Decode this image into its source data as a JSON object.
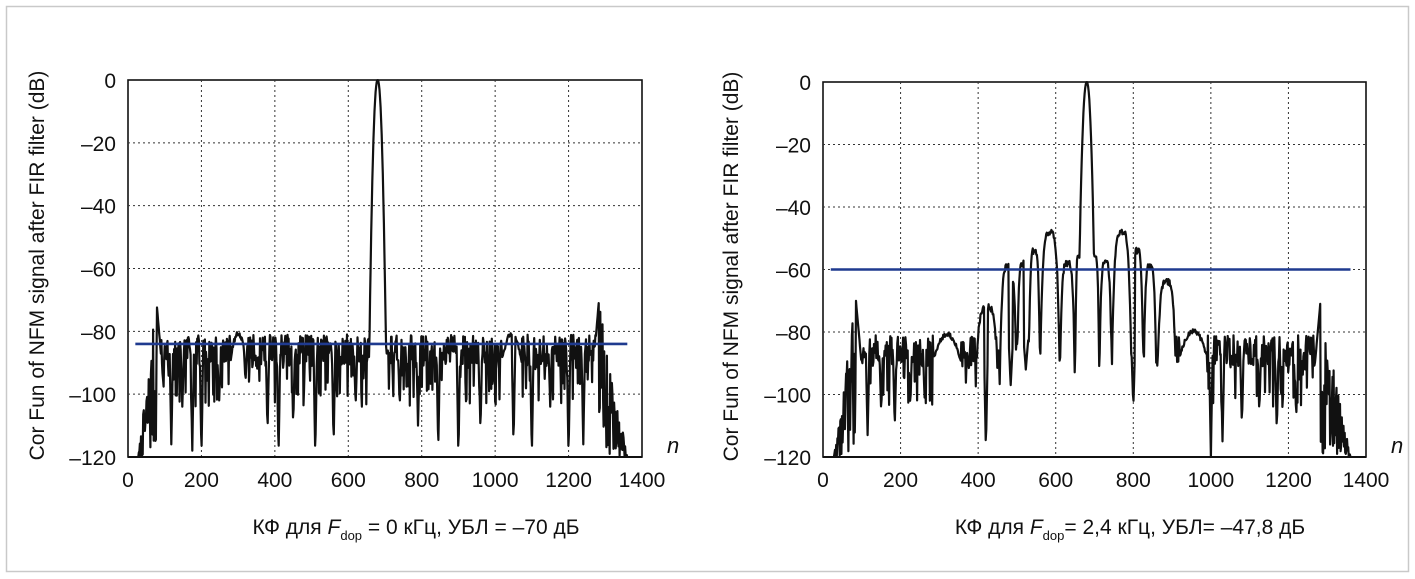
{
  "chart_data": [
    {
      "type": "line",
      "ylabel": "Cor Fun of NFM signal after FIR filter (dB)",
      "xlabel_symbol": "n",
      "caption": {
        "prefix": "КФ для ",
        "var": "F",
        "sub": "dop",
        "suffix": " = 0 кГц, УБЛ = –70 дБ"
      },
      "xlim": [
        0,
        1400
      ],
      "ylim": [
        -120,
        0
      ],
      "x_ticks": [
        "0",
        "200",
        "400",
        "600",
        "800",
        "1000",
        "1200",
        "1400"
      ],
      "y_ticks": [
        "0",
        "–20",
        "–40",
        "–60",
        "–80",
        "–100",
        "–120"
      ],
      "grid": true,
      "reference_line": {
        "y": -84,
        "color": "#1f3a8f"
      },
      "series_color": "#111111",
      "signal": {
        "x_range": [
          28,
          1360
        ],
        "mainlobe": {
          "x": 680,
          "y": 0,
          "width_3db": 22
        },
        "sidelobe_floor": -80,
        "edge_peaks": [
          {
            "x": 78,
            "y": -69
          },
          {
            "x": 1282,
            "y": -69
          }
        ],
        "deep_nulls": [
          {
            "x": 118,
            "y": -116
          },
          {
            "x": 148,
            "y": -104
          },
          {
            "x": 175,
            "y": -118
          },
          {
            "x": 200,
            "y": -120
          },
          {
            "x": 248,
            "y": -104
          },
          {
            "x": 320,
            "y": -96
          },
          {
            "x": 380,
            "y": -112
          },
          {
            "x": 410,
            "y": -120
          },
          {
            "x": 450,
            "y": -110
          },
          {
            "x": 510,
            "y": -120
          },
          {
            "x": 560,
            "y": -116
          },
          {
            "x": 620,
            "y": -104
          },
          {
            "x": 740,
            "y": -104
          },
          {
            "x": 790,
            "y": -110
          },
          {
            "x": 845,
            "y": -118
          },
          {
            "x": 900,
            "y": -120
          },
          {
            "x": 960,
            "y": -112
          },
          {
            "x": 1050,
            "y": -116
          },
          {
            "x": 1100,
            "y": -120
          },
          {
            "x": 1150,
            "y": -104
          },
          {
            "x": 1200,
            "y": -120
          },
          {
            "x": 1240,
            "y": -116
          }
        ],
        "smooth_arches": [
          [
            280,
            320,
            -80
          ],
          [
            1020,
            1070,
            -80
          ]
        ]
      }
    },
    {
      "type": "line",
      "ylabel": "Cor Fun of NFM signal after FIR filter (dB)",
      "xlabel_symbol": "n",
      "caption": {
        "prefix": "КФ для ",
        "var": "F",
        "sub": "dop",
        "suffix": "= 2,4 кГц, УБЛ= –47,8 дБ"
      },
      "xlim": [
        0,
        1400
      ],
      "ylim": [
        -120,
        0
      ],
      "x_ticks": [
        "0",
        "200",
        "400",
        "600",
        "800",
        "1000",
        "1200",
        "1400"
      ],
      "y_ticks": [
        "0",
        "–20",
        "–40",
        "–60",
        "–80",
        "–100",
        "–120"
      ],
      "grid": true,
      "reference_line": {
        "y": -60,
        "color": "#1f3a8f"
      },
      "series_color": "#111111",
      "signal": {
        "x_range": [
          28,
          1360
        ],
        "mainlobe": {
          "x": 680,
          "y": 0,
          "width_3db": 22
        },
        "sidelobe_floor": -80,
        "edge_peaks": [
          {
            "x": 85,
            "y": -68
          },
          {
            "x": 1282,
            "y": -69
          }
        ],
        "inner_lobes": [
          [
            455,
            500,
            -58
          ],
          [
            500,
            530,
            -57
          ],
          [
            530,
            560,
            -53
          ],
          [
            560,
            610,
            -47
          ],
          [
            610,
            650,
            -57
          ],
          [
            650,
            668,
            -55
          ],
          [
            692,
            712,
            -55
          ],
          [
            712,
            745,
            -57
          ],
          [
            745,
            795,
            -47
          ],
          [
            795,
            826,
            -53
          ],
          [
            826,
            860,
            -58
          ],
          [
            860,
            912,
            -63
          ],
          [
            390,
            455,
            -71
          ]
        ],
        "deep_nulls": [
          {
            "x": 115,
            "y": -113
          },
          {
            "x": 150,
            "y": -106
          },
          {
            "x": 185,
            "y": -111
          },
          {
            "x": 225,
            "y": -104
          },
          {
            "x": 262,
            "y": -101
          },
          {
            "x": 420,
            "y": -118
          },
          {
            "x": 484,
            "y": -97
          },
          {
            "x": 523,
            "y": -92
          },
          {
            "x": 800,
            "y": -104
          },
          {
            "x": 1000,
            "y": -120
          },
          {
            "x": 1030,
            "y": -115
          },
          {
            "x": 1080,
            "y": -110
          },
          {
            "x": 1125,
            "y": -106
          },
          {
            "x": 1170,
            "y": -112
          },
          {
            "x": 1220,
            "y": -108
          }
        ],
        "smooth_arches": [
          [
            285,
            355,
            -80
          ],
          [
            920,
            990,
            -79
          ]
        ]
      }
    }
  ]
}
